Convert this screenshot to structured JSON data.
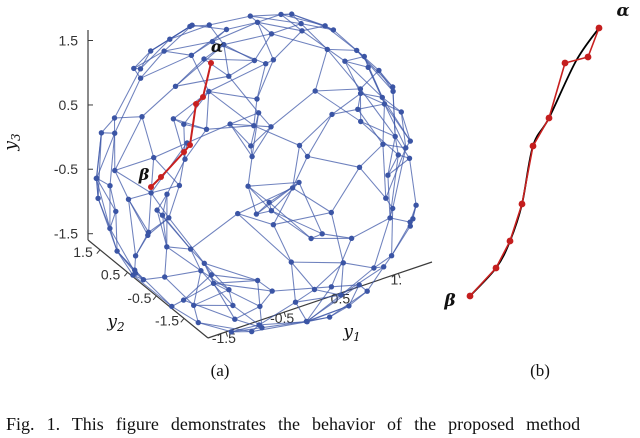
{
  "figure": {
    "subcaption_a": "(a)",
    "subcaption_b": "(b)",
    "caption_text": "Fig. 1.  This figure demonstrates the behavior of the proposed method"
  },
  "panel_a": {
    "axis_labels": {
      "x": {
        "base": "y",
        "sub": "1"
      },
      "y": {
        "base": "y",
        "sub": "2"
      },
      "z": {
        "base": "y",
        "sub": "3"
      }
    },
    "z_ticks": [
      "1.5",
      "0.5",
      "-0.5",
      "-1.5"
    ],
    "y_ticks": [
      "1.5",
      "0.5",
      "-0.5",
      "-1.5"
    ],
    "x_ticks": [
      "-1.5",
      "-0.5",
      "0.5",
      "1."
    ],
    "graph": {
      "node_count": 150,
      "seed": 12,
      "k_neighbors": 4,
      "node_color": "#3b55a5",
      "edge_color": "#3f58a8"
    },
    "path": {
      "color": "#c8201f",
      "points": [
        [
          211,
          63
        ],
        [
          203,
          97
        ],
        [
          196,
          104
        ],
        [
          190,
          145
        ],
        [
          184,
          152
        ],
        [
          161,
          177
        ],
        [
          151,
          187
        ]
      ]
    },
    "alpha_label": "α",
    "alpha_pos": [
      217,
      52
    ],
    "beta_label": "β",
    "beta_pos": [
      144,
      180
    ]
  },
  "panel_b": {
    "curve_color": "#000000",
    "line_color": "#c8201f",
    "dot_color": "#c41e1e",
    "dots": [
      [
        159,
        28
      ],
      [
        148,
        57
      ],
      [
        125,
        63
      ],
      [
        109,
        118
      ],
      [
        93,
        146
      ],
      [
        82,
        204
      ],
      [
        70,
        241
      ],
      [
        56,
        268
      ],
      [
        30,
        296
      ]
    ],
    "curve": [
      [
        159,
        28
      ],
      [
        136,
        61
      ],
      [
        109,
        118
      ],
      [
        93,
        146
      ],
      [
        82,
        204
      ],
      [
        70,
        241
      ],
      [
        56,
        268
      ],
      [
        30,
        296
      ]
    ],
    "alpha_label": "α",
    "alpha_pos": [
      183,
      16
    ],
    "beta_label": "β",
    "beta_pos": [
      10,
      306
    ]
  }
}
